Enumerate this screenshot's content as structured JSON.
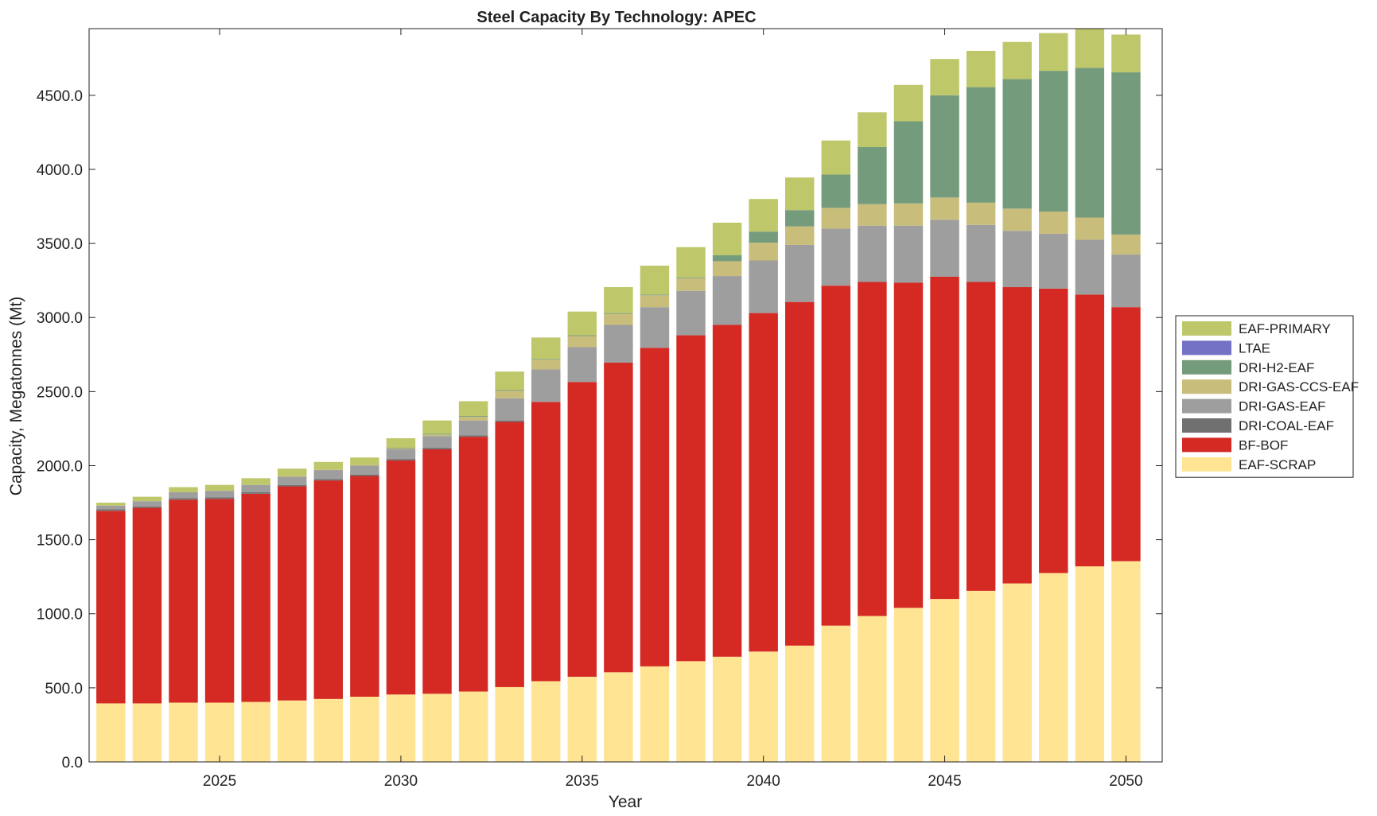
{
  "chart_data": {
    "type": "bar",
    "stacked": true,
    "title": "Steel Capacity By Technology: APEC",
    "xlabel": "Year",
    "ylabel": "Capacity, Megatonnes (Mt)",
    "xlim": [
      2021.4,
      2051.0
    ],
    "ylim": [
      0,
      4950
    ],
    "yticks": [
      0,
      500,
      1000,
      1500,
      2000,
      2500,
      3000,
      3500,
      4000,
      4500
    ],
    "ytick_labels": [
      "0.0",
      "500.0",
      "1000.0",
      "1500.0",
      "2000.0",
      "2500.0",
      "3000.0",
      "3500.0",
      "4000.0",
      "4500.0"
    ],
    "xticks": [
      2025,
      2030,
      2035,
      2040,
      2045,
      2050
    ],
    "xtick_labels": [
      "2025",
      "2030",
      "2035",
      "2040",
      "2045",
      "2050"
    ],
    "grid": false,
    "legend_position": "right",
    "x": [
      2022,
      2023,
      2024,
      2025,
      2026,
      2027,
      2028,
      2029,
      2030,
      2031,
      2032,
      2033,
      2034,
      2035,
      2036,
      2037,
      2038,
      2039,
      2040,
      2041,
      2042,
      2043,
      2044,
      2045,
      2046,
      2047,
      2048,
      2049,
      2050
    ],
    "series": [
      {
        "name": "EAF-SCRAP",
        "color": "#ffe494",
        "values": [
          395,
          395,
          400,
          400,
          405,
          415,
          425,
          440,
          455,
          460,
          475,
          505,
          545,
          575,
          605,
          645,
          680,
          710,
          745,
          785,
          920,
          985,
          1040,
          1100,
          1155,
          1205,
          1275,
          1320,
          1355
        ]
      },
      {
        "name": "BF-BOF",
        "color": "#d42a23",
        "values": [
          1300,
          1320,
          1370,
          1375,
          1405,
          1445,
          1475,
          1490,
          1580,
          1650,
          1720,
          1790,
          1885,
          1990,
          2090,
          2150,
          2200,
          2240,
          2285,
          2320,
          2295,
          2255,
          2195,
          2175,
          2085,
          2000,
          1920,
          1835,
          1715
        ]
      },
      {
        "name": "DRI-COAL-EAF",
        "color": "#707070",
        "values": [
          10,
          10,
          10,
          10,
          10,
          10,
          10,
          10,
          10,
          10,
          10,
          10,
          0,
          0,
          0,
          0,
          0,
          0,
          0,
          0,
          0,
          0,
          0,
          0,
          0,
          0,
          0,
          0,
          0
        ]
      },
      {
        "name": "DRI-GAS-EAF",
        "color": "#9e9e9e",
        "values": [
          25,
          35,
          40,
          45,
          50,
          55,
          60,
          60,
          65,
          80,
          100,
          150,
          220,
          235,
          255,
          275,
          300,
          330,
          355,
          385,
          385,
          380,
          385,
          385,
          385,
          380,
          370,
          370,
          355
        ]
      },
      {
        "name": "DRI-GAS-CCS-EAF",
        "color": "#c9bd7c",
        "values": [
          0,
          0,
          0,
          0,
          0,
          5,
          5,
          5,
          5,
          10,
          25,
          50,
          65,
          75,
          75,
          80,
          85,
          100,
          120,
          125,
          140,
          145,
          150,
          150,
          150,
          150,
          150,
          150,
          135
        ]
      },
      {
        "name": "DRI-H2-EAF",
        "color": "#759b7d",
        "values": [
          0,
          0,
          0,
          0,
          0,
          0,
          0,
          0,
          5,
          5,
          5,
          5,
          5,
          5,
          5,
          5,
          5,
          40,
          75,
          110,
          225,
          385,
          555,
          690,
          780,
          875,
          950,
          1010,
          1095
        ]
      },
      {
        "name": "LTAE",
        "color": "#7472c4",
        "values": [
          0,
          0,
          0,
          0,
          0,
          0,
          0,
          0,
          0,
          0,
          0,
          0,
          0,
          0,
          0,
          0,
          0,
          0,
          0,
          0,
          0,
          0,
          0,
          0,
          0,
          0,
          0,
          0,
          0
        ]
      },
      {
        "name": "EAF-PRIMARY",
        "color": "#bec76a",
        "values": [
          20,
          30,
          35,
          40,
          45,
          50,
          50,
          50,
          65,
          90,
          100,
          125,
          145,
          160,
          175,
          195,
          205,
          220,
          220,
          220,
          230,
          235,
          245,
          245,
          245,
          250,
          255,
          265,
          255
        ]
      }
    ],
    "legend_order": [
      "EAF-PRIMARY",
      "LTAE",
      "DRI-H2-EAF",
      "DRI-GAS-CCS-EAF",
      "DRI-GAS-EAF",
      "DRI-COAL-EAF",
      "BF-BOF",
      "EAF-SCRAP"
    ]
  }
}
